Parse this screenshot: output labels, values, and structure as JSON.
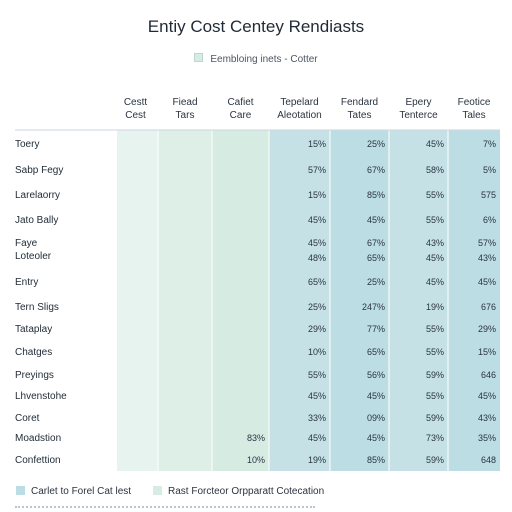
{
  "chart_data": {
    "type": "table",
    "title": "Entiy Cost Centey Rendiasts",
    "subtitle": "Eembloing inets - Cotter",
    "columns": [
      {
        "name": "Cestt Cest",
        "lines": [
          "Cestt",
          "Cest"
        ]
      },
      {
        "name": "Fiead Tars",
        "lines": [
          "Fiead",
          "Tars"
        ]
      },
      {
        "name": "Cafiet Care",
        "lines": [
          "Cafiet",
          "Care"
        ]
      },
      {
        "name": "Tepelard Aleotation",
        "lines": [
          "Tepelard",
          "Aleotation"
        ]
      },
      {
        "name": "Fendard Tates",
        "lines": [
          "Fendard",
          "Tates"
        ]
      },
      {
        "name": "Epery Tenterce",
        "lines": [
          "Epery",
          "Tenterce"
        ]
      },
      {
        "name": "Feotice Tales",
        "lines": [
          "Feotice",
          "Tales"
        ]
      }
    ],
    "rows": [
      {
        "label": [
          "Toery"
        ],
        "values": [
          "",
          "",
          "",
          "15%",
          "25%",
          "45%",
          "7%"
        ]
      },
      {
        "label": [
          "Sabp Fegy"
        ],
        "values": [
          "",
          "",
          "",
          "57%",
          "67%",
          "58%",
          "5%"
        ]
      },
      {
        "label": [
          "Larelaorry"
        ],
        "values": [
          "",
          "",
          "",
          "15%",
          "85%",
          "55%",
          "575"
        ]
      },
      {
        "label": [
          "Jato Bally"
        ],
        "values": [
          "",
          "",
          "",
          "45%",
          "45%",
          "55%",
          "6%"
        ]
      },
      {
        "label": [
          "Faye",
          "Loteoler"
        ],
        "values": [
          "",
          "",
          "",
          "45%",
          "67%",
          "43%",
          "57%"
        ]
      },
      {
        "label": [
          ""
        ],
        "values": [
          "",
          "",
          "",
          "48%",
          "65%",
          "45%",
          "43%"
        ]
      },
      {
        "label": [
          "Entry"
        ],
        "values": [
          "",
          "",
          "",
          "65%",
          "25%",
          "45%",
          "45%"
        ]
      },
      {
        "label": [
          "Tern Sligs"
        ],
        "values": [
          "",
          "",
          "",
          "25%",
          "247%",
          "19%",
          "676"
        ]
      },
      {
        "label": [
          "Tataplay"
        ],
        "values": [
          "",
          "",
          "",
          "29%",
          "77%",
          "55%",
          "29%"
        ]
      },
      {
        "label": [
          "Chatges"
        ],
        "values": [
          "",
          "",
          "",
          "10%",
          "65%",
          "55%",
          "15%"
        ]
      },
      {
        "label": [
          "Preyings"
        ],
        "values": [
          "",
          "",
          "",
          "55%",
          "56%",
          "59%",
          "646"
        ]
      },
      {
        "label": [
          "Lhvenstohe"
        ],
        "values": [
          "",
          "",
          "",
          "45%",
          "45%",
          "55%",
          "45%"
        ]
      },
      {
        "label": [
          "Coret"
        ],
        "values": [
          "",
          "",
          "",
          "33%",
          "09%",
          "59%",
          "43%"
        ]
      },
      {
        "label": [
          "Moadstion"
        ],
        "values": [
          "",
          "",
          "83%",
          "45%",
          "45%",
          "73%",
          "35%"
        ]
      },
      {
        "label": [
          "Confettion"
        ],
        "values": [
          "",
          "",
          "10%",
          "19%",
          "85%",
          "59%",
          "648"
        ]
      }
    ],
    "column_colors": [
      "#e6f3ee",
      "#deefe7",
      "#d6ebe2",
      "#c5e1e6",
      "#bcdde3",
      "#c5e1e6",
      "#bcdde3"
    ],
    "legend": [
      {
        "label": "Carlet to Forel Cat lest",
        "color": "#bcdde3"
      },
      {
        "label": "Rast Forcteor Orpparatt Cotecation",
        "color": "#d8ece4"
      }
    ],
    "legend_placement": "bottom-left"
  }
}
